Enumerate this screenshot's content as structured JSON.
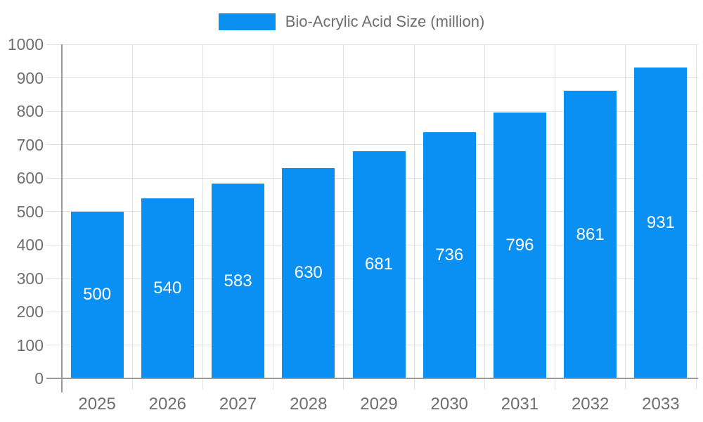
{
  "legend": {
    "label": "Bio-Acrylic Acid Size (million)"
  },
  "chart_data": {
    "type": "bar",
    "title": "Bio-Acrylic Acid Size (million)",
    "series_name": "Bio-Acrylic Acid Size (million)",
    "categories": [
      "2025",
      "2026",
      "2027",
      "2028",
      "2029",
      "2030",
      "2031",
      "2032",
      "2033"
    ],
    "values": [
      500,
      540,
      583,
      630,
      681,
      736,
      796,
      861,
      931
    ],
    "yticks": [
      0,
      100,
      200,
      300,
      400,
      500,
      600,
      700,
      800,
      900,
      1000
    ],
    "xlabel": "",
    "ylabel": "",
    "ylim": [
      0,
      1000
    ],
    "ytick_step": 100,
    "grid": true,
    "value_labels": "centered-inside-bars",
    "legend_position": "top-center",
    "colors": {
      "bar": "#0a8ff2",
      "value_label": "#ffffff",
      "axis_line": "#9b9b9b",
      "gridline": "#e2e2e2",
      "tick_label": "#6f6f6f",
      "legend_text": "#6f6f6f",
      "background": "#ffffff"
    }
  }
}
